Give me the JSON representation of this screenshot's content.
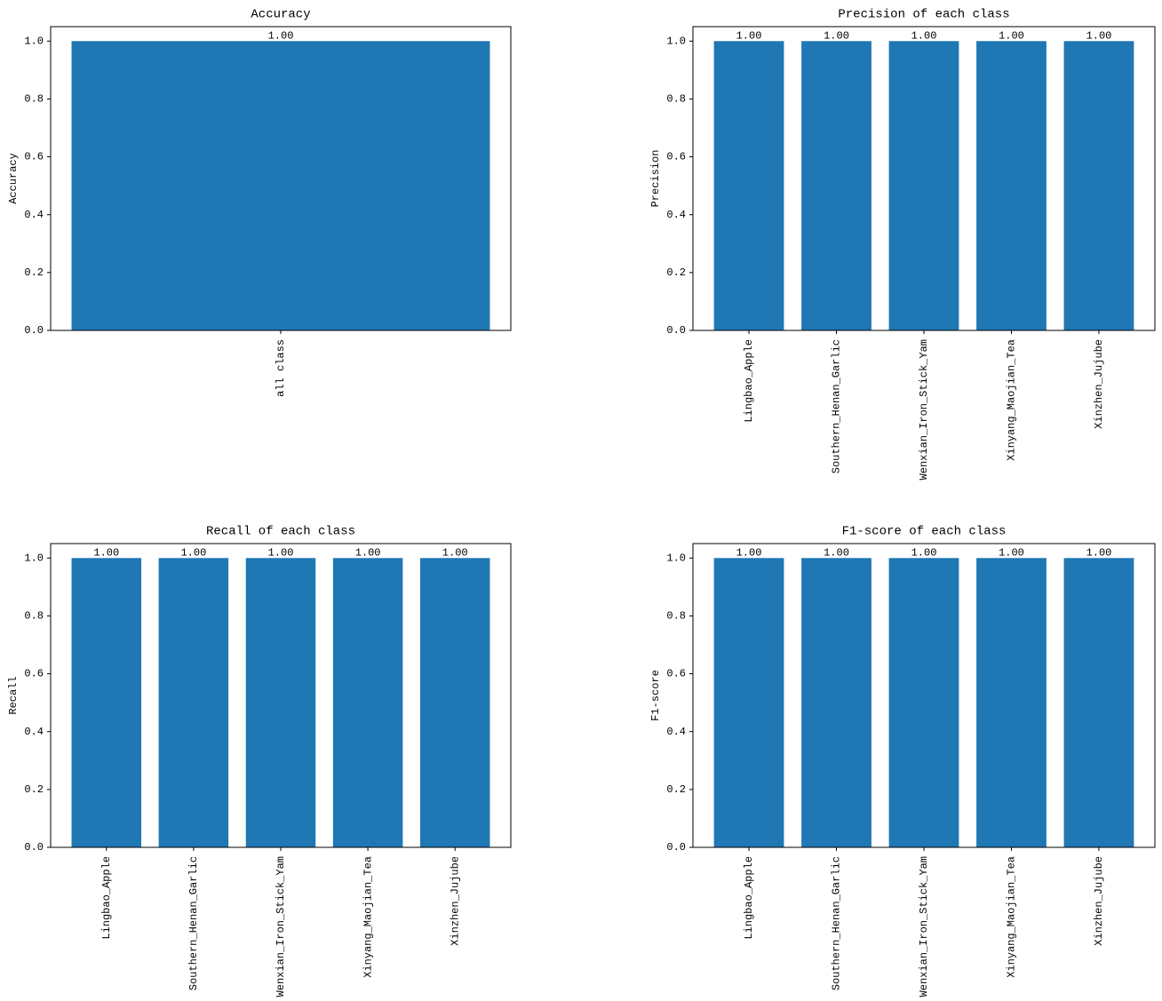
{
  "chart_data": [
    {
      "type": "bar",
      "title": "Accuracy",
      "ylabel": "Accuracy",
      "categories": [
        "all class"
      ],
      "values": [
        1
      ],
      "value_labels": [
        "1.00"
      ],
      "color": "#1f77b4",
      "ylim": [
        0,
        1.05
      ],
      "yticks": [
        {
          "value": 0,
          "label": "0.0"
        },
        {
          "value": 0.2,
          "label": "0.2"
        },
        {
          "value": 0.4,
          "label": "0.4"
        },
        {
          "value": 0.6,
          "label": "0.6"
        },
        {
          "value": 0.8,
          "label": "0.8"
        },
        {
          "value": 1,
          "label": "1.0"
        }
      ]
    },
    {
      "type": "bar",
      "title": "Precision of each class",
      "ylabel": "Precision",
      "categories": [
        "Lingbao_Apple",
        "Southern_Henan_Garlic",
        "Wenxian_Iron_Stick_Yam",
        "Xinyang_Maojian_Tea",
        "Xinzhen_Jujube"
      ],
      "values": [
        1,
        1,
        1,
        1,
        1
      ],
      "value_labels": [
        "1.00",
        "1.00",
        "1.00",
        "1.00",
        "1.00"
      ],
      "color": "#1f77b4",
      "ylim": [
        0,
        1.05
      ],
      "yticks": [
        {
          "value": 0,
          "label": "0.0"
        },
        {
          "value": 0.2,
          "label": "0.2"
        },
        {
          "value": 0.4,
          "label": "0.4"
        },
        {
          "value": 0.6,
          "label": "0.6"
        },
        {
          "value": 0.8,
          "label": "0.8"
        },
        {
          "value": 1,
          "label": "1.0"
        }
      ]
    },
    {
      "type": "bar",
      "title": "Recall of each class",
      "ylabel": "Recall",
      "categories": [
        "Lingbao_Apple",
        "Southern_Henan_Garlic",
        "Wenxian_Iron_Stick_Yam",
        "Xinyang_Maojian_Tea",
        "Xinzhen_Jujube"
      ],
      "values": [
        1,
        1,
        1,
        1,
        1
      ],
      "value_labels": [
        "1.00",
        "1.00",
        "1.00",
        "1.00",
        "1.00"
      ],
      "color": "#1f77b4",
      "ylim": [
        0,
        1.05
      ],
      "yticks": [
        {
          "value": 0,
          "label": "0.0"
        },
        {
          "value": 0.2,
          "label": "0.2"
        },
        {
          "value": 0.4,
          "label": "0.4"
        },
        {
          "value": 0.6,
          "label": "0.6"
        },
        {
          "value": 0.8,
          "label": "0.8"
        },
        {
          "value": 1,
          "label": "1.0"
        }
      ]
    },
    {
      "type": "bar",
      "title": "F1-score of each class",
      "ylabel": "F1-score",
      "categories": [
        "Lingbao_Apple",
        "Southern_Henan_Garlic",
        "Wenxian_Iron_Stick_Yam",
        "Xinyang_Maojian_Tea",
        "Xinzhen_Jujube"
      ],
      "values": [
        1,
        1,
        1,
        1,
        1
      ],
      "value_labels": [
        "1.00",
        "1.00",
        "1.00",
        "1.00",
        "1.00"
      ],
      "color": "#1f77b4",
      "ylim": [
        0,
        1.05
      ],
      "yticks": [
        {
          "value": 0,
          "label": "0.0"
        },
        {
          "value": 0.2,
          "label": "0.2"
        },
        {
          "value": 0.4,
          "label": "0.4"
        },
        {
          "value": 0.6,
          "label": "0.6"
        },
        {
          "value": 0.8,
          "label": "0.8"
        },
        {
          "value": 1,
          "label": "1.0"
        }
      ]
    }
  ]
}
